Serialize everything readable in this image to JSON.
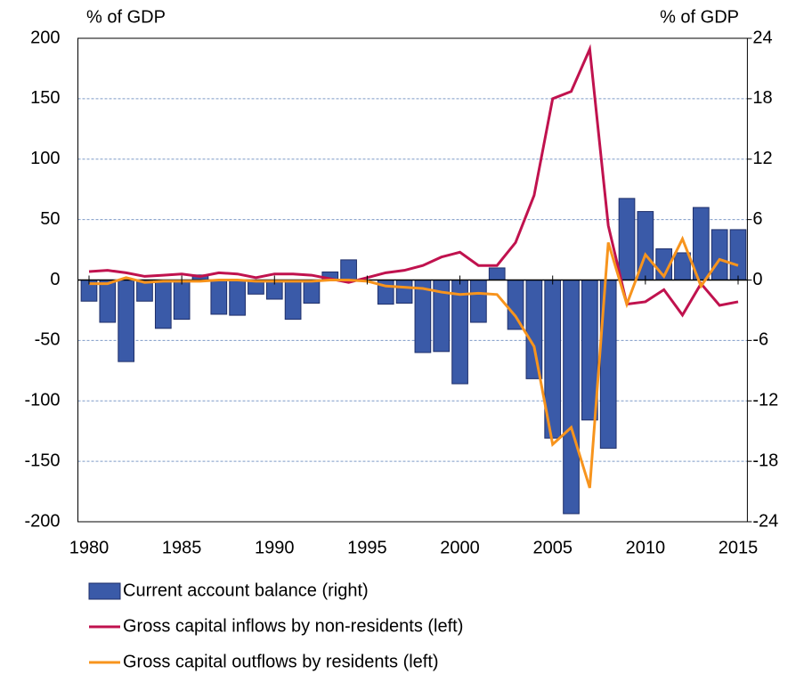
{
  "chart_data": {
    "type": "combo",
    "ylabel": "% of GDP",
    "y2label": "% of GDP",
    "x": [
      1980,
      1981,
      1982,
      1983,
      1984,
      1985,
      1986,
      1987,
      1988,
      1989,
      1990,
      1991,
      1992,
      1993,
      1994,
      1995,
      1996,
      1997,
      1998,
      1999,
      2000,
      2001,
      2002,
      2003,
      2004,
      2005,
      2006,
      2007,
      2008,
      2009,
      2010,
      2011,
      2012,
      2013,
      2014,
      2015
    ],
    "xlim": [
      1979.4,
      2015.5
    ],
    "xticks": [
      1980,
      1985,
      1990,
      1995,
      2000,
      2005,
      2010,
      2015
    ],
    "ylim": [
      -200,
      200
    ],
    "yticks": [
      200,
      150,
      100,
      50,
      0,
      -50,
      -100,
      -150,
      -200
    ],
    "y2lim": [
      -24,
      24
    ],
    "y2ticks": [
      24,
      18,
      12,
      6,
      0,
      -6,
      -12,
      -18,
      -24
    ],
    "grid": true,
    "series": [
      {
        "name": "Current account balance (right)",
        "type": "bar",
        "axis": "y2",
        "color": "#3a5aa8",
        "values": [
          -2.1,
          -4.2,
          -8.1,
          -2.1,
          -4.8,
          -3.9,
          0.5,
          -3.4,
          -3.5,
          -1.4,
          -1.9,
          -3.9,
          -2.3,
          0.8,
          2.0,
          0,
          -2.4,
          -2.3,
          -7.2,
          -7.1,
          -10.3,
          -4.2,
          1.2,
          -4.9,
          -9.8,
          -15.7,
          -23.2,
          -13.9,
          -16.7,
          8.1,
          6.8,
          3.1,
          2.7,
          7.2,
          5.0,
          5.0
        ]
      },
      {
        "name": "Gross capital inflows by non-residents (left)",
        "type": "line",
        "axis": "y",
        "color": "#c0124e",
        "values": [
          7,
          8,
          6,
          3,
          4,
          5,
          3,
          6,
          5,
          2,
          5,
          5,
          4,
          1,
          -2,
          2,
          6,
          8,
          12,
          19,
          23,
          12,
          12,
          31,
          70,
          150,
          156,
          191,
          45,
          -20,
          -18,
          -8,
          -29,
          -3,
          -21,
          -18
        ]
      },
      {
        "name": "Gross capital outflows by residents (left)",
        "type": "line",
        "axis": "y",
        "color": "#f7941d",
        "values": [
          -3,
          -3,
          2,
          -2,
          -1,
          -1,
          -1,
          0,
          0,
          -1,
          -1,
          -1,
          -1,
          0,
          0,
          -1,
          -5,
          -6,
          -7,
          -10,
          -12,
          -11,
          -12,
          -30,
          -55,
          -136,
          -122,
          -172,
          31,
          -20,
          21,
          3,
          34,
          -5,
          17,
          12
        ]
      }
    ]
  }
}
